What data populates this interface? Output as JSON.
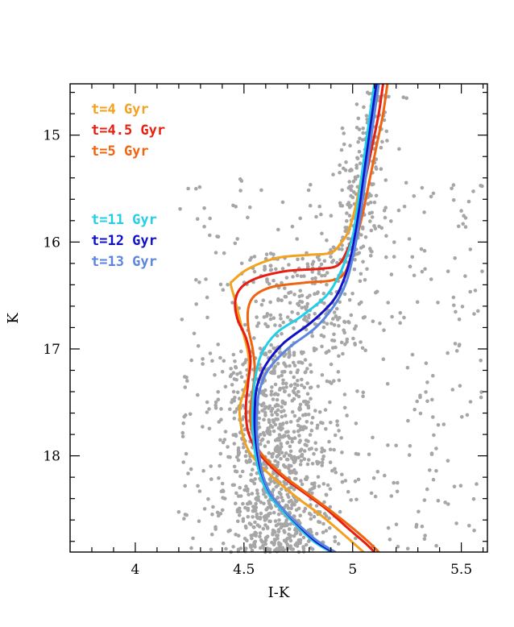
{
  "chart_data": {
    "type": "line",
    "title": "",
    "xlabel": "I-K",
    "ylabel": "K",
    "xlim": [
      3.7,
      5.62
    ],
    "ylim": [
      18.9,
      14.52
    ],
    "y_inverted": true,
    "x_ticks": [
      4,
      4.5,
      5,
      5.5
    ],
    "x_tick_labels": [
      "4",
      "4.5",
      "5",
      "5.5"
    ],
    "y_ticks": [
      15,
      16,
      17,
      18
    ],
    "y_tick_labels": [
      "15",
      "16",
      "17",
      "18"
    ],
    "grid": false,
    "legend_position": "top-left",
    "point_color": "#a6a6a6",
    "series": [
      {
        "name": "t=4 Gyr",
        "color": "#f2a21e",
        "x": [
          5.12,
          5.1,
          5.07,
          5.04,
          5.01,
          4.98,
          4.95,
          4.9,
          4.8,
          4.65,
          4.52,
          4.45,
          4.44,
          4.46,
          4.49,
          4.52,
          4.52,
          4.5,
          4.48,
          4.485,
          4.5,
          4.53,
          4.58,
          4.66,
          4.75,
          4.85,
          4.95,
          5.05
        ],
        "y": [
          14.52,
          14.8,
          15.1,
          15.4,
          15.7,
          15.9,
          16.0,
          16.1,
          16.12,
          16.15,
          16.25,
          16.36,
          16.4,
          16.55,
          16.8,
          17.05,
          17.25,
          17.4,
          17.55,
          17.7,
          17.85,
          17.98,
          18.1,
          18.25,
          18.4,
          18.55,
          18.72,
          18.9
        ]
      },
      {
        "name": "t=4.5 Gyr",
        "color": "#e81e10",
        "x": [
          5.14,
          5.12,
          5.09,
          5.06,
          5.03,
          5.0,
          4.97,
          4.93,
          4.85,
          4.7,
          4.57,
          4.49,
          4.46,
          4.47,
          4.51,
          4.53,
          4.52,
          4.51,
          4.51,
          4.52,
          4.55,
          4.6,
          4.68,
          4.78,
          4.88,
          4.98,
          5.06,
          5.1
        ],
        "y": [
          14.52,
          14.8,
          15.1,
          15.4,
          15.7,
          15.95,
          16.1,
          16.22,
          16.25,
          16.27,
          16.33,
          16.42,
          16.55,
          16.72,
          16.9,
          17.1,
          17.3,
          17.5,
          17.65,
          17.78,
          17.92,
          18.05,
          18.2,
          18.35,
          18.5,
          18.68,
          18.82,
          18.9
        ]
      },
      {
        "name": "t=5 Gyr",
        "color": "#f0640f",
        "x": [
          5.16,
          5.14,
          5.11,
          5.08,
          5.05,
          5.02,
          4.99,
          4.96,
          4.9,
          4.78,
          4.63,
          4.55,
          4.52,
          4.52,
          4.54,
          4.55,
          4.54,
          4.53,
          4.53,
          4.54,
          4.56,
          4.61,
          4.69,
          4.79,
          4.89,
          4.99,
          5.07,
          5.12
        ],
        "y": [
          14.52,
          14.8,
          15.1,
          15.4,
          15.7,
          15.95,
          16.15,
          16.3,
          16.36,
          16.38,
          16.42,
          16.5,
          16.62,
          16.8,
          17.0,
          17.2,
          17.4,
          17.55,
          17.68,
          17.8,
          17.92,
          18.05,
          18.2,
          18.35,
          18.5,
          18.66,
          18.8,
          18.9
        ]
      },
      {
        "name": "t=11 Gyr",
        "color": "#22cfe8",
        "x": [
          5.1,
          5.08,
          5.06,
          5.04,
          5.02,
          5.0,
          4.97,
          4.94,
          4.88,
          4.76,
          4.65,
          4.58,
          4.55,
          4.54,
          4.54,
          4.55,
          4.57,
          4.61,
          4.67,
          4.74,
          4.82,
          4.9
        ],
        "y": [
          14.52,
          14.8,
          15.1,
          15.4,
          15.7,
          15.95,
          16.15,
          16.3,
          16.5,
          16.7,
          16.85,
          17.05,
          17.3,
          17.55,
          17.75,
          17.95,
          18.15,
          18.35,
          18.5,
          18.65,
          18.8,
          18.9
        ]
      },
      {
        "name": "t=12 Gyr",
        "color": "#1010c8",
        "x": [
          5.11,
          5.09,
          5.07,
          5.05,
          5.03,
          5.01,
          4.99,
          4.96,
          4.91,
          4.81,
          4.68,
          4.6,
          4.56,
          4.55,
          4.55,
          4.56,
          4.58,
          4.62,
          4.68,
          4.75,
          4.83,
          4.91
        ],
        "y": [
          14.52,
          14.8,
          15.1,
          15.4,
          15.7,
          15.95,
          16.15,
          16.35,
          16.55,
          16.75,
          16.95,
          17.15,
          17.35,
          17.55,
          17.75,
          17.95,
          18.15,
          18.35,
          18.5,
          18.65,
          18.8,
          18.9
        ]
      },
      {
        "name": "t=13 Gyr",
        "color": "#5b86e0",
        "x": [
          5.12,
          5.1,
          5.08,
          5.06,
          5.04,
          5.02,
          5.0,
          4.97,
          4.92,
          4.83,
          4.7,
          4.61,
          4.57,
          4.56,
          4.56,
          4.57,
          4.59,
          4.63,
          4.69,
          4.76,
          4.84,
          4.92
        ],
        "y": [
          14.52,
          14.8,
          15.1,
          15.4,
          15.7,
          15.95,
          16.15,
          16.38,
          16.58,
          16.8,
          17.0,
          17.2,
          17.4,
          17.6,
          17.8,
          18.0,
          18.2,
          18.38,
          18.52,
          18.66,
          18.8,
          18.9
        ]
      }
    ],
    "legend_groups": [
      [
        0,
        1,
        2
      ],
      [
        3,
        4,
        5
      ]
    ],
    "scatter_seed": 1234,
    "scatter_note": "grey field/cluster stars (approx.)"
  }
}
